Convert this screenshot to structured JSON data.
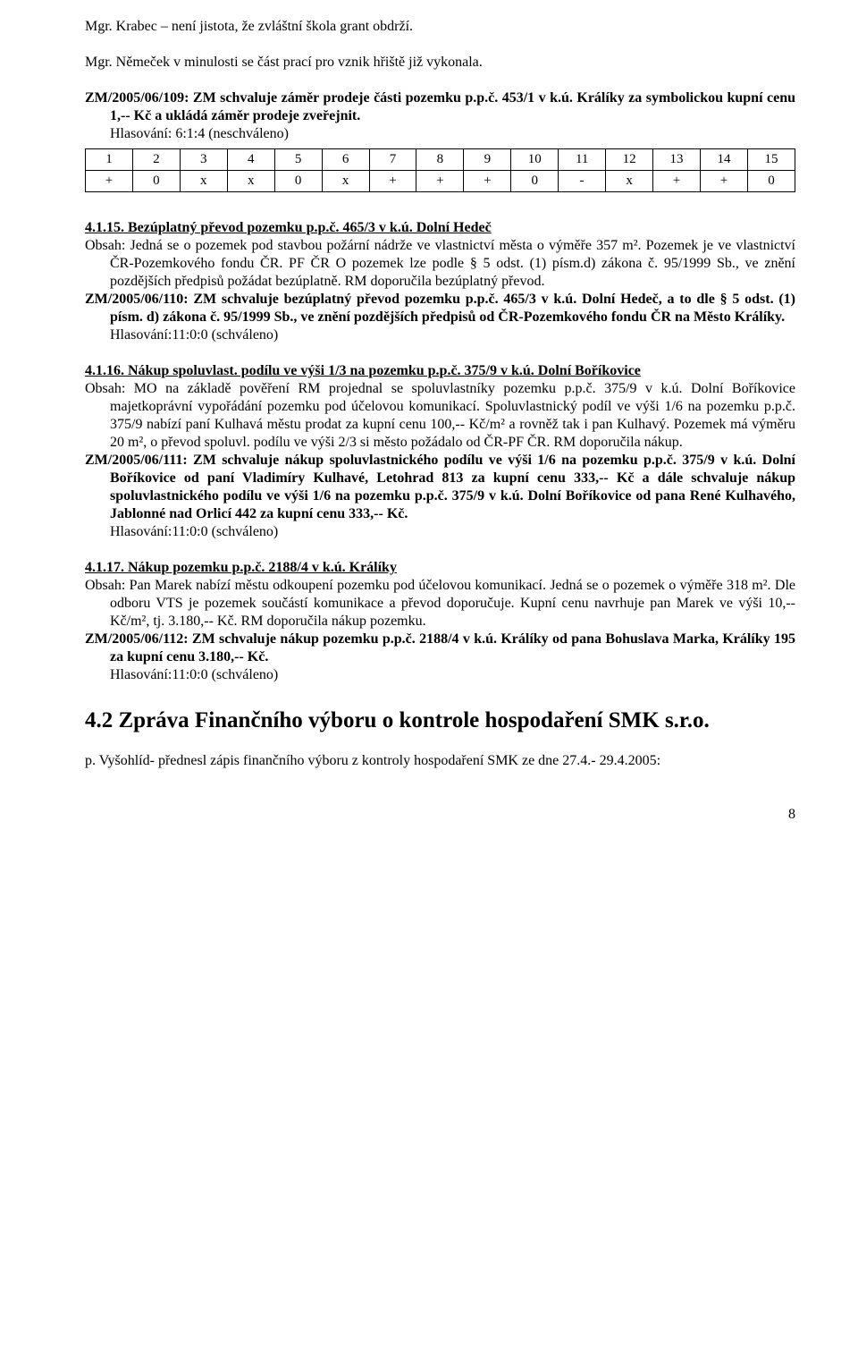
{
  "p1": "Mgr. Krabec – není jistota, že zvláštní škola grant obdrží.",
  "p2": "Mgr. Němeček v minulosti se část prací pro vznik hřiště již vykonala.",
  "p3a": "ZM/2005/06/109: ZM schvaluje záměr prodeje části pozemku p.p.č. 453/1 v k.ú. Králíky za symbolickou kupní cenu 1,-- Kč a ukládá záměr prodeje zveřejnit.",
  "p3b": "Hlasování: 6:1:4 (neschváleno)",
  "voting": {
    "header": [
      "1",
      "2",
      "3",
      "4",
      "5",
      "6",
      "7",
      "8",
      "9",
      "10",
      "11",
      "12",
      "13",
      "14",
      "15"
    ],
    "row": [
      "+",
      "0",
      "x",
      "x",
      "0",
      "x",
      "+",
      "+",
      "+",
      "0",
      "-",
      "x",
      "+",
      "+",
      "0"
    ],
    "border_color": "#000000",
    "cell_fontsize": 15
  },
  "sec1_title": "4.1.15. Bezúplatný převod pozemku p.p.č. 465/3 v k.ú. Dolní Hedeč",
  "sec1_body": "Obsah: Jedná se o pozemek pod stavbou požární nádrže ve vlastnictví města o výměře 357 m². Pozemek je ve vlastnictví ČR-Pozemkového fondu ČR. PF ČR O pozemek lze podle § 5 odst. (1) písm.d) zákona č. 95/1999 Sb., ve znění pozdějších předpisů požádat bezúplatně. RM doporučila bezúplatný převod.",
  "sec1_res": "ZM/2005/06/110: ZM schvaluje bezúplatný převod pozemku p.p.č. 465/3 v k.ú. Dolní Hedeč, a to dle § 5 odst. (1) písm. d) zákona č. 95/1999 Sb., ve znění pozdějších předpisů od ČR-Pozemkového fondu ČR na Město Králíky.",
  "approved": "Hlasování:11:0:0 (schváleno)",
  "sec2_title": "4.1.16. Nákup spoluvlast. podílu ve výši 1/3 na pozemku p.p.č. 375/9 v k.ú. Dolní Boříkovice",
  "sec2_body": "Obsah: MO na základě pověření RM projednal se spoluvlastníky pozemku p.p.č. 375/9 v k.ú. Dolní Boříkovice majetkoprávní vypořádání pozemku pod účelovou komunikací. Spoluvlastnický podíl ve výši 1/6 na pozemku p.p.č. 375/9 nabízí paní Kulhavá městu prodat za kupní cenu 100,-- Kč/m² a rovněž tak i pan Kulhavý. Pozemek má výměru 20 m², o převod spoluvl. podílu ve výši 2/3 si město požádalo od ČR-PF ČR. RM doporučila nákup.",
  "sec2_res": "ZM/2005/06/111: ZM schvaluje nákup spoluvlastnického podílu ve výši 1/6 na pozemku p.p.č. 375/9 v k.ú. Dolní Boříkovice od paní Vladimíry Kulhavé, Letohrad 813 za kupní cenu 333,-- Kč a dále schvaluje nákup spoluvlastnického podílu ve výši 1/6 na pozemku p.p.č. 375/9 v k.ú. Dolní Boříkovice od pana René Kulhavého, Jablonné nad Orlicí 442 za kupní cenu 333,-- Kč.",
  "sec3_title": "4.1.17. Nákup pozemku p.p.č. 2188/4 v k.ú. Králíky",
  "sec3_body": "Obsah: Pan Marek nabízí městu odkoupení pozemku pod účelovou komunikací. Jedná se o pozemek o výměře 318 m². Dle odboru VTS je pozemek součástí komunikace a převod doporučuje. Kupní cenu navrhuje pan Marek ve výši 10,-- Kč/m², tj. 3.180,-- Kč. RM doporučila nákup pozemku.",
  "sec3_res": "ZM/2005/06/112: ZM schvaluje nákup pozemku p.p.č. 2188/4 v k.ú. Králíky od pana Bohuslava Marka, Králíky 195 za kupní cenu 3.180,-- Kč.",
  "sec42": "4.2 Zpráva Finančního výboru o kontrole hospodaření SMK s.r.o.",
  "last": "p. Vyšohlíd- přednesl zápis finančního výboru z kontroly hospodaření SMK ze dne 27.4.- 29.4.2005:",
  "pagenum": "8",
  "colors": {
    "text": "#000000",
    "background": "#ffffff"
  },
  "fontsize_body_pt": 12,
  "fontsize_heading_pt": 18
}
